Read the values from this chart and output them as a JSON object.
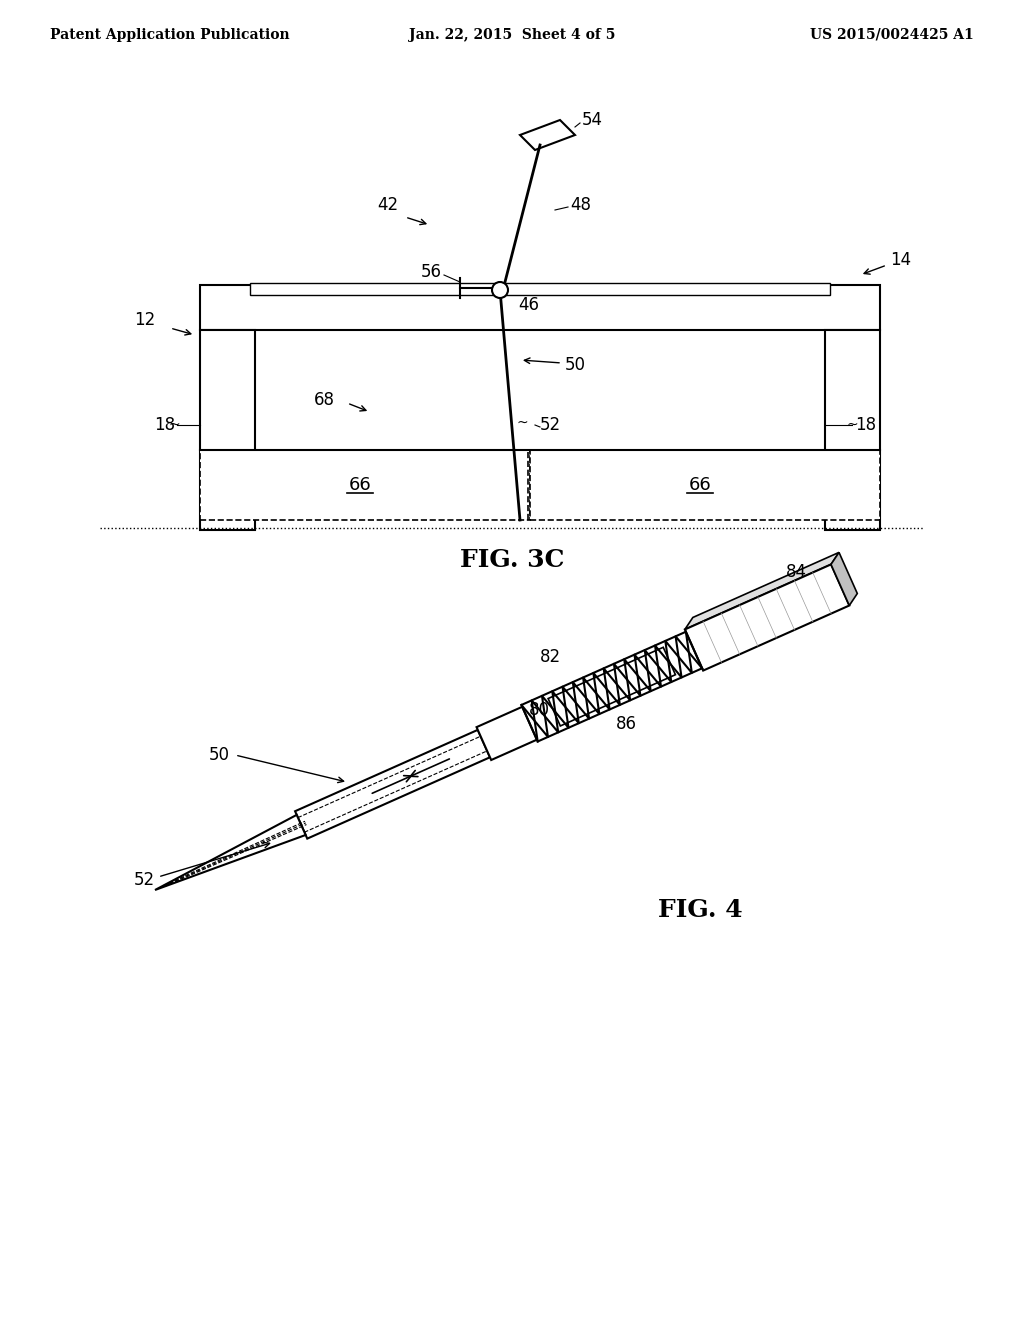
{
  "background_color": "#ffffff",
  "header_left": "Patent Application Publication",
  "header_center": "Jan. 22, 2015  Sheet 4 of 5",
  "header_right": "US 2015/0024425 A1",
  "fig3c_label": "FIG. 3C",
  "fig4_label": "FIG. 4",
  "text_color": "#000000",
  "line_color": "#000000"
}
